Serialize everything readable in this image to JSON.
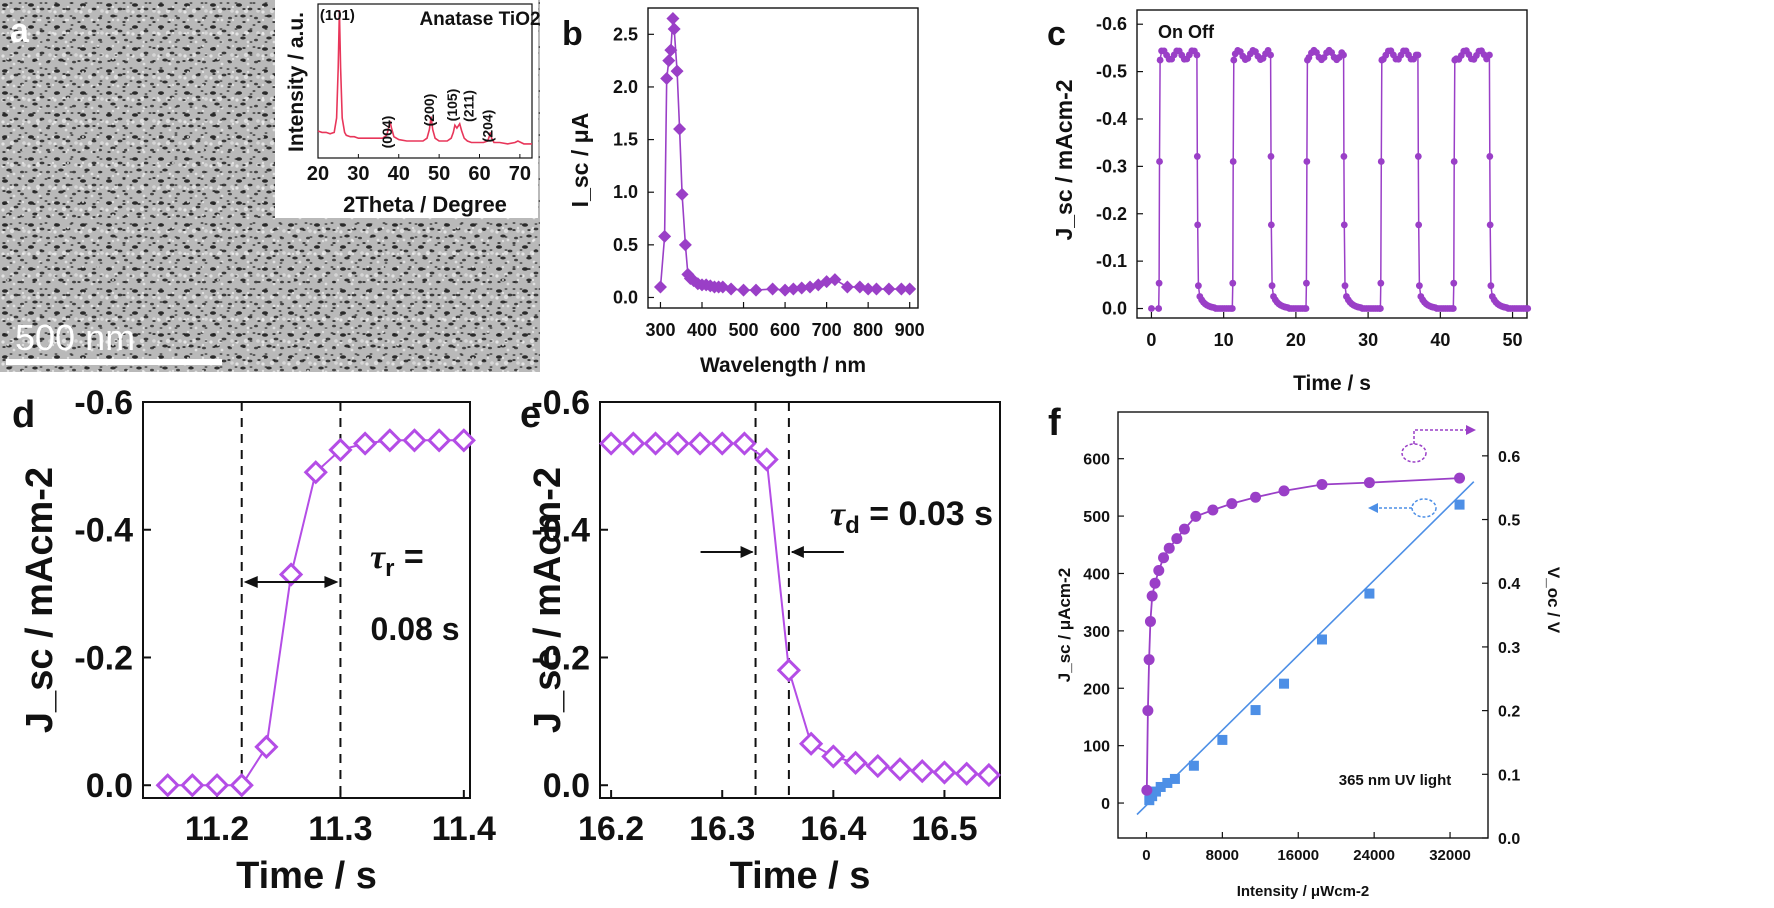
{
  "panels": {
    "a": {
      "letter": "a",
      "scalebar": "500 nm"
    },
    "b": {
      "letter": "b"
    },
    "c": {
      "letter": "c"
    },
    "d": {
      "letter": "d"
    },
    "e": {
      "letter": "e"
    },
    "f": {
      "letter": "f"
    }
  },
  "chart_data": [
    {
      "id": "inset_xrd",
      "type": "line",
      "title": "Anatase TiO2",
      "xlabel": "2Theta / Degree",
      "ylabel": "Intensity / a.u.",
      "xlim": [
        20,
        73
      ],
      "xticks": [
        20,
        30,
        40,
        50,
        60,
        70
      ],
      "color": "#e8365a",
      "peaks": [
        {
          "x": 25.3,
          "label": "(101)"
        },
        {
          "x": 37.8,
          "label": "(004)"
        },
        {
          "x": 48.0,
          "label": "(200)"
        },
        {
          "x": 53.9,
          "label": "(105)"
        },
        {
          "x": 55.1,
          "label": "(211)"
        },
        {
          "x": 62.7,
          "label": "(204)"
        }
      ],
      "x": [
        20,
        21,
        22,
        23,
        24,
        24.6,
        25.0,
        25.3,
        25.6,
        26.0,
        26.6,
        27,
        28,
        29,
        30,
        31,
        32,
        33,
        34,
        35,
        36,
        37,
        37.4,
        37.8,
        38.2,
        38.8,
        40,
        42,
        44,
        46,
        47,
        47.6,
        48.0,
        48.4,
        49,
        50,
        51,
        52,
        53,
        53.5,
        53.9,
        54.4,
        55.1,
        55.6,
        56.2,
        57,
        58,
        59,
        60,
        61,
        62,
        62.4,
        62.7,
        63.0,
        63.6,
        65,
        67,
        68.8,
        69.5,
        71,
        72,
        73
      ],
      "y": [
        0.16,
        0.15,
        0.15,
        0.14,
        0.15,
        0.25,
        0.6,
        1.0,
        0.6,
        0.25,
        0.15,
        0.13,
        0.12,
        0.12,
        0.11,
        0.11,
        0.11,
        0.11,
        0.11,
        0.11,
        0.11,
        0.13,
        0.17,
        0.23,
        0.18,
        0.12,
        0.1,
        0.09,
        0.09,
        0.09,
        0.11,
        0.17,
        0.26,
        0.17,
        0.11,
        0.09,
        0.09,
        0.09,
        0.11,
        0.15,
        0.2,
        0.18,
        0.21,
        0.16,
        0.11,
        0.09,
        0.08,
        0.08,
        0.08,
        0.08,
        0.09,
        0.12,
        0.15,
        0.11,
        0.08,
        0.08,
        0.07,
        0.08,
        0.09,
        0.07,
        0.07,
        0.07
      ]
    },
    {
      "id": "b",
      "type": "scatter",
      "xlabel": "Wavelength / nm",
      "ylabel": "I_sc / μA",
      "xlim": [
        270,
        920
      ],
      "ylim": [
        -0.1,
        2.75
      ],
      "xticks": [
        300,
        400,
        500,
        600,
        700,
        800,
        900
      ],
      "yticks": [
        0.0,
        0.5,
        1.0,
        1.5,
        2.0,
        2.5
      ],
      "color": "#9a3fc7",
      "x": [
        300,
        310,
        315,
        320,
        325,
        330,
        333,
        340,
        346,
        352,
        360,
        366,
        372,
        380,
        390,
        400,
        410,
        420,
        430,
        440,
        450,
        470,
        500,
        530,
        570,
        600,
        620,
        640,
        660,
        680,
        700,
        720,
        750,
        780,
        800,
        820,
        850,
        880,
        900
      ],
      "y": [
        0.1,
        0.58,
        2.08,
        2.25,
        2.35,
        2.65,
        2.55,
        2.15,
        1.6,
        0.98,
        0.5,
        0.22,
        0.18,
        0.16,
        0.13,
        0.12,
        0.12,
        0.11,
        0.1,
        0.1,
        0.1,
        0.08,
        0.07,
        0.07,
        0.08,
        0.07,
        0.08,
        0.09,
        0.1,
        0.12,
        0.15,
        0.17,
        0.1,
        0.1,
        0.08,
        0.08,
        0.08,
        0.08,
        0.08
      ]
    },
    {
      "id": "c",
      "type": "line",
      "xlabel": "Time / s",
      "ylabel": "J_sc / mAcm-2",
      "xlim": [
        -2,
        52
      ],
      "ylim": [
        -0.63,
        0.02
      ],
      "xticks": [
        0,
        10,
        20,
        30,
        40,
        50
      ],
      "yticks": [
        -0.6,
        -0.5,
        -0.4,
        -0.3,
        -0.2,
        -0.1,
        0.0
      ],
      "annotation": "On  Off",
      "color": "#9a3fc7",
      "on_times": [
        1.0,
        11.2,
        21.4,
        31.7,
        41.8
      ],
      "off_times": [
        6.3,
        16.5,
        26.6,
        36.9,
        46.8
      ],
      "on_level": -0.535,
      "off_level": 0.0
    },
    {
      "id": "d",
      "type": "line",
      "xlabel": "Time / s",
      "ylabel": "J_sc / mAcm-2",
      "xlim": [
        11.14,
        11.405
      ],
      "ylim": [
        -0.6,
        0.02
      ],
      "xticks": [
        11.2,
        11.3,
        11.4
      ],
      "yticks": [
        -0.6,
        -0.4,
        -0.2,
        0.0
      ],
      "annotation": "τr = 0.08 s",
      "dashed_x": [
        11.22,
        11.3
      ],
      "color": "#b44de6",
      "x": [
        11.16,
        11.18,
        11.2,
        11.22,
        11.24,
        11.26,
        11.28,
        11.3,
        11.32,
        11.34,
        11.36,
        11.38,
        11.4
      ],
      "y": [
        0.0,
        0.0,
        0.0,
        0.0,
        -0.06,
        -0.33,
        -0.49,
        -0.525,
        -0.535,
        -0.54,
        -0.54,
        -0.54,
        -0.54
      ]
    },
    {
      "id": "e",
      "type": "line",
      "xlabel": "Time / s",
      "ylabel": "J_sc / mAcm-2",
      "xlim": [
        16.19,
        16.55
      ],
      "ylim": [
        -0.6,
        0.02
      ],
      "xticks": [
        16.2,
        16.3,
        16.4,
        16.5
      ],
      "yticks": [
        -0.6,
        -0.4,
        -0.2,
        0.0
      ],
      "annotation": "τd = 0.03 s",
      "dashed_x": [
        16.33,
        16.36
      ],
      "color": "#b44de6",
      "x": [
        16.2,
        16.22,
        16.24,
        16.26,
        16.28,
        16.3,
        16.32,
        16.34,
        16.36,
        16.38,
        16.4,
        16.42,
        16.44,
        16.46,
        16.48,
        16.5,
        16.52,
        16.54
      ],
      "y": [
        -0.535,
        -0.535,
        -0.535,
        -0.535,
        -0.535,
        -0.535,
        -0.535,
        -0.51,
        -0.18,
        -0.065,
        -0.045,
        -0.035,
        -0.03,
        -0.025,
        -0.022,
        -0.02,
        -0.018,
        -0.016
      ]
    },
    {
      "id": "f",
      "type": "scatter",
      "xlabel": "Intensity / μWcm-2",
      "ylabel": "J_sc / μAcm-2",
      "y2label": "V_oc / V",
      "xlim": [
        -3000,
        36000
      ],
      "ylim": [
        -40,
        650
      ],
      "y2lim": [
        0.0,
        0.65
      ],
      "xticks": [
        0,
        8000,
        16000,
        24000,
        32000
      ],
      "yticks": [
        0,
        100,
        200,
        300,
        400,
        500,
        600
      ],
      "y2ticks": [
        0.0,
        0.1,
        0.2,
        0.3,
        0.4,
        0.5,
        0.6
      ],
      "annotation": "365 nm UV light",
      "series": [
        {
          "name": "V_oc",
          "axis": "right",
          "marker": "circle",
          "color": "#9a3fc7",
          "x": [
            40,
            150,
            280,
            420,
            600,
            900,
            1300,
            1800,
            2400,
            3200,
            4000,
            5200,
            7000,
            9000,
            11500,
            14500,
            18500,
            23500,
            33000
          ],
          "y": [
            0.075,
            0.2,
            0.28,
            0.34,
            0.38,
            0.4,
            0.42,
            0.44,
            0.455,
            0.47,
            0.485,
            0.505,
            0.515,
            0.525,
            0.535,
            0.545,
            0.555,
            0.558,
            0.565
          ]
        },
        {
          "name": "J_sc",
          "axis": "left",
          "marker": "square",
          "color": "#4d8fe6",
          "x": [
            300,
            600,
            1000,
            1500,
            2200,
            3000,
            5000,
            8000,
            11500,
            14500,
            18500,
            23500,
            33000
          ],
          "y": [
            5,
            12,
            20,
            28,
            35,
            42,
            65,
            110,
            162,
            208,
            285,
            365,
            520
          ],
          "fit": {
            "x": [
              -1000,
              34500
            ],
            "y": [
              -20,
              560
            ]
          }
        }
      ]
    }
  ]
}
